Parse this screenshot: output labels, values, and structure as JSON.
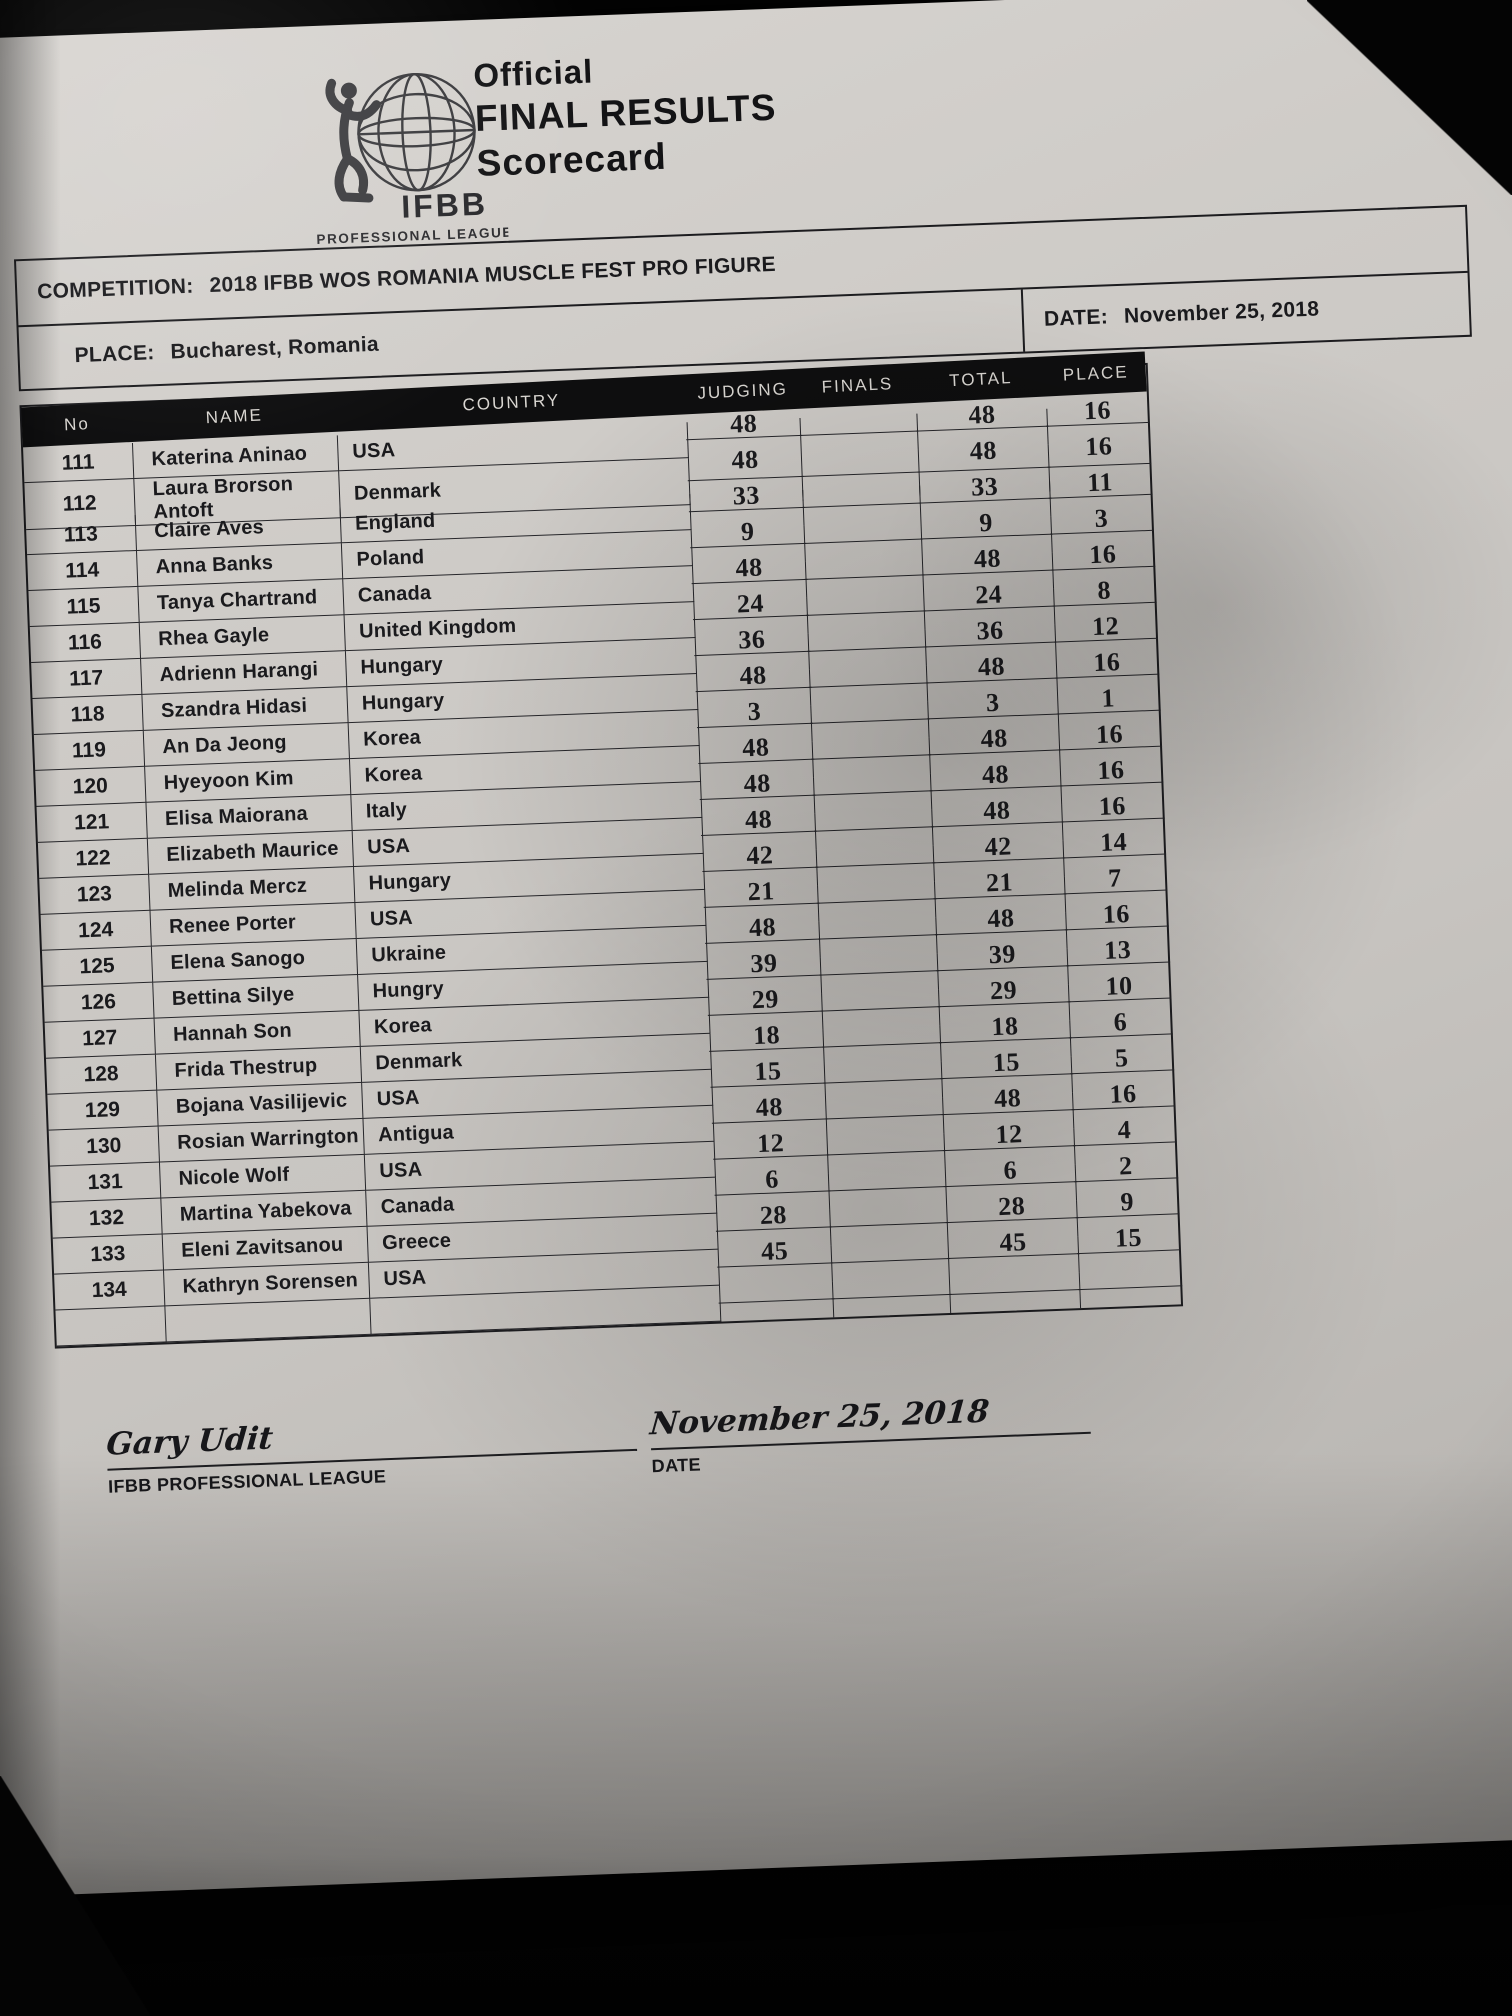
{
  "logo": {
    "org": "IFBB",
    "tagline": "PROFESSIONAL LEAGUE"
  },
  "title": {
    "line1": "Official",
    "line2": "FINAL RESULTS",
    "line3": "Scorecard"
  },
  "info": {
    "competition_label": "COMPETITION:",
    "competition_value": "2018 IFBB WOS ROMANIA MUSCLE FEST PRO FIGURE",
    "date_label": "DATE:",
    "date_value": "November 25, 2018",
    "place_label": "PLACE:",
    "place_value": "Bucharest, Romania"
  },
  "table": {
    "headers": [
      "No",
      "NAME",
      "COUNTRY",
      "JUDGING",
      "FINALS",
      "TOTAL",
      "PLACE"
    ],
    "trailing_empty_rows": 1,
    "rows": [
      {
        "no": "111",
        "name": "Katerina Aninao",
        "country": "USA",
        "judging": "48",
        "finals": "",
        "total": "48",
        "place": "16"
      },
      {
        "no": "112",
        "name": "Laura Brorson Antoft",
        "country": "Denmark",
        "judging": "48",
        "finals": "",
        "total": "48",
        "place": "16"
      },
      {
        "no": "113",
        "name": "Claire Aves",
        "country": "England",
        "judging": "33",
        "finals": "",
        "total": "33",
        "place": "11"
      },
      {
        "no": "114",
        "name": "Anna Banks",
        "country": "Poland",
        "judging": "9",
        "finals": "",
        "total": "9",
        "place": "3"
      },
      {
        "no": "115",
        "name": "Tanya Chartrand",
        "country": "Canada",
        "judging": "48",
        "finals": "",
        "total": "48",
        "place": "16"
      },
      {
        "no": "116",
        "name": "Rhea Gayle",
        "country": "United Kingdom",
        "judging": "24",
        "finals": "",
        "total": "24",
        "place": "8"
      },
      {
        "no": "117",
        "name": "Adrienn Harangi",
        "country": "Hungary",
        "judging": "36",
        "finals": "",
        "total": "36",
        "place": "12"
      },
      {
        "no": "118",
        "name": "Szandra Hidasi",
        "country": "Hungary",
        "judging": "48",
        "finals": "",
        "total": "48",
        "place": "16"
      },
      {
        "no": "119",
        "name": "An Da Jeong",
        "country": "Korea",
        "judging": "3",
        "finals": "",
        "total": "3",
        "place": "1"
      },
      {
        "no": "120",
        "name": "Hyeyoon Kim",
        "country": "Korea",
        "judging": "48",
        "finals": "",
        "total": "48",
        "place": "16"
      },
      {
        "no": "121",
        "name": "Elisa Maiorana",
        "country": "Italy",
        "judging": "48",
        "finals": "",
        "total": "48",
        "place": "16"
      },
      {
        "no": "122",
        "name": "Elizabeth Maurice",
        "country": "USA",
        "judging": "48",
        "finals": "",
        "total": "48",
        "place": "16"
      },
      {
        "no": "123",
        "name": "Melinda Mercz",
        "country": "Hungary",
        "judging": "42",
        "finals": "",
        "total": "42",
        "place": "14"
      },
      {
        "no": "124",
        "name": "Renee Porter",
        "country": "USA",
        "judging": "21",
        "finals": "",
        "total": "21",
        "place": "7"
      },
      {
        "no": "125",
        "name": "Elena Sanogo",
        "country": "Ukraine",
        "judging": "48",
        "finals": "",
        "total": "48",
        "place": "16"
      },
      {
        "no": "126",
        "name": "Bettina Silye",
        "country": "Hungry",
        "judging": "39",
        "finals": "",
        "total": "39",
        "place": "13"
      },
      {
        "no": "127",
        "name": "Hannah Son",
        "country": "Korea",
        "judging": "29",
        "finals": "",
        "total": "29",
        "place": "10"
      },
      {
        "no": "128",
        "name": "Frida Thestrup",
        "country": "Denmark",
        "judging": "18",
        "finals": "",
        "total": "18",
        "place": "6"
      },
      {
        "no": "129",
        "name": "Bojana Vasilijevic",
        "country": "USA",
        "judging": "15",
        "finals": "",
        "total": "15",
        "place": "5"
      },
      {
        "no": "130",
        "name": "Rosian Warrington",
        "country": "Antigua",
        "judging": "48",
        "finals": "",
        "total": "48",
        "place": "16"
      },
      {
        "no": "131",
        "name": "Nicole Wolf",
        "country": "USA",
        "judging": "12",
        "finals": "",
        "total": "12",
        "place": "4"
      },
      {
        "no": "132",
        "name": "Martina Yabekova",
        "country": "Canada",
        "judging": "6",
        "finals": "",
        "total": "6",
        "place": "2"
      },
      {
        "no": "133",
        "name": "Eleni Zavitsanou",
        "country": "Greece",
        "judging": "28",
        "finals": "",
        "total": "28",
        "place": "9"
      },
      {
        "no": "134",
        "name": "Kathryn Sorensen",
        "country": "USA",
        "judging": "45",
        "finals": "",
        "total": "45",
        "place": "15"
      }
    ]
  },
  "footer": {
    "signature": "Gary Udit",
    "signature_caption": "IFBB PROFESSIONAL LEAGUE",
    "date_value": "November 25, 2018",
    "date_caption": "DATE"
  },
  "colors": {
    "paper": "#cecbc7",
    "ink": "#1a1a1d",
    "header_band": "#0e0e0f",
    "photo_background": "#030303"
  }
}
